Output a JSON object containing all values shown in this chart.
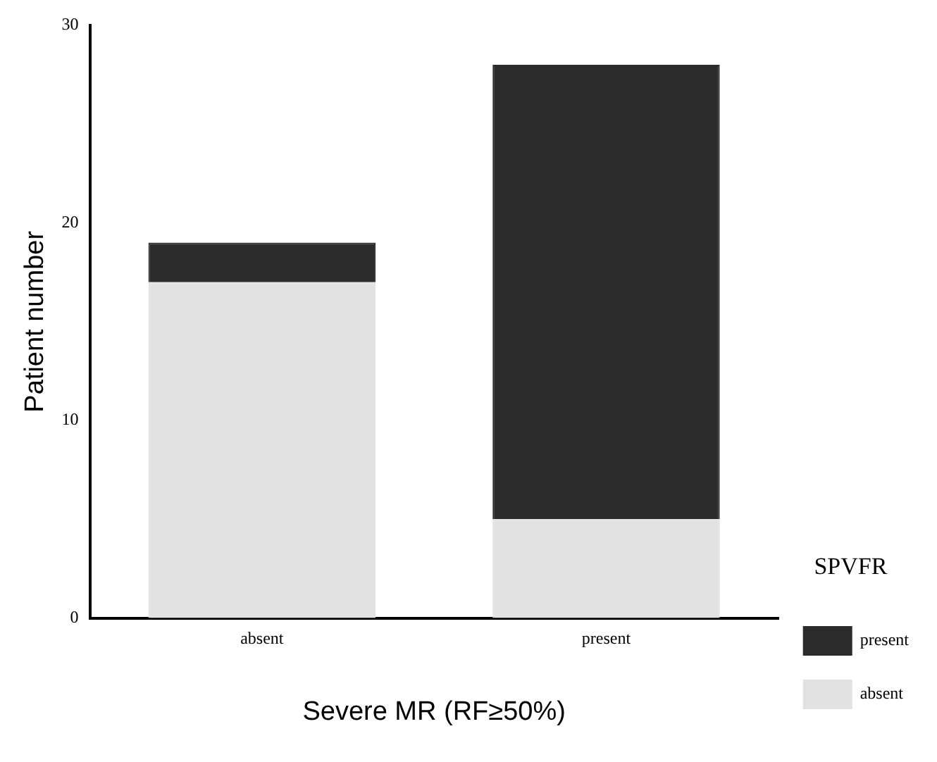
{
  "chart_data": {
    "type": "bar",
    "stacked": true,
    "xlabel": "Severe MR (RF≥50%)",
    "ylabel": "Patient number",
    "legend_title": "SPVFR",
    "legend": "right",
    "categories": [
      "absent",
      "present"
    ],
    "series": [
      {
        "name": "absent",
        "color": "#e2e2e2",
        "values": [
          17,
          5
        ]
      },
      {
        "name": "present",
        "color": "#2b2b2b",
        "values": [
          2,
          23
        ]
      }
    ],
    "ylim": [
      0,
      30
    ],
    "yticks": [
      0,
      10,
      20,
      30
    ],
    "grid": false
  }
}
